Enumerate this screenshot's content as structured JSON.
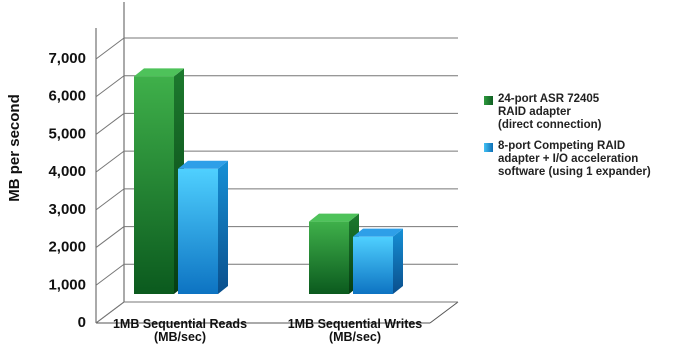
{
  "chart_data": {
    "type": "bar",
    "title": "",
    "xlabel": "",
    "ylabel": "MB per second",
    "ylim": [
      0,
      7000
    ],
    "yticks": [
      0,
      1000,
      2000,
      3000,
      4000,
      5000,
      6000,
      7000
    ],
    "ytick_labels": [
      "0",
      "1,000",
      "2,000",
      "3,000",
      "4,000",
      "5,000",
      "6,000",
      "7,000"
    ],
    "grid": true,
    "legend_position": "right",
    "categories": [
      [
        "1MB Sequential Reads",
        "(MB/sec)"
      ],
      [
        "1MB Sequential Writes",
        "(MB/sec)"
      ]
    ],
    "series": [
      {
        "name": "24-port ASR 72405 RAID adapter (direct connection)",
        "name_lines": [
          "24-port ASR 72405",
          "RAID adapter",
          "(direct connection)"
        ],
        "color": "#1f8a3a",
        "values": [
          6300,
          2450
        ]
      },
      {
        "name": "8-port Competing RAID adapter + I/O acceleration software (using 1 expander)",
        "name_lines": [
          "8-port Competing RAID",
          "adapter + I/O acceleration",
          "software (using 1 expander)"
        ],
        "color": "#1a9ce0",
        "values": [
          3850,
          2050
        ]
      }
    ]
  }
}
